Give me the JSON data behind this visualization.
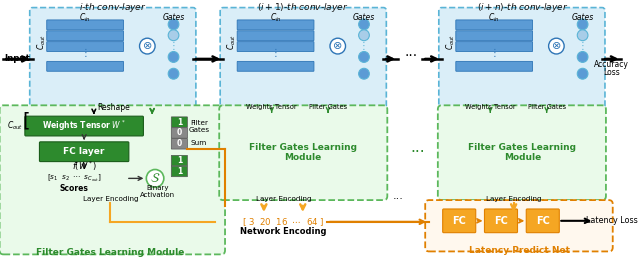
{
  "bg_color": "#ffffff",
  "blue_dashed_ec": "#5ab4d6",
  "blue_fill": "#daeef8",
  "blue_rect_fc": "#5b9bd5",
  "blue_rect_ec": "#2e75b6",
  "green_dashed_ec": "#5cb85c",
  "green_bg": "#eafaea",
  "green_rect_fc": "#2d8a2d",
  "green_rect_ec": "#1a5c1a",
  "green_text": "#2d8a2d",
  "orange_fc": "#f5a623",
  "orange_ec": "#e08000",
  "orange_bg": "#fff8ee",
  "orange_text": "#e08000",
  "black": "#1a1a1a",
  "layer1_title": "$i$-th conv-layer",
  "layer2_title": "$(i+1)$-th conv-layer",
  "layer3_title": "$(i+n)$-th conv-layer"
}
